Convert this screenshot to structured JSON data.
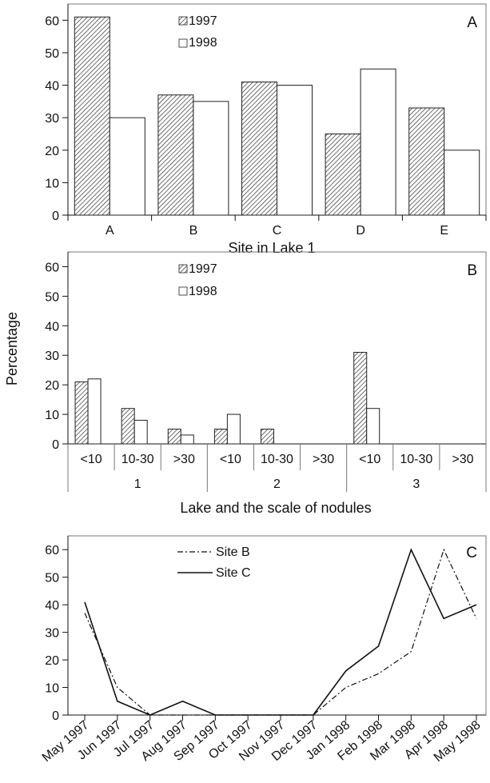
{
  "chart_data": [
    {
      "type": "bar",
      "panel_label": "A",
      "xlabel": "Site in Lake 1",
      "ylabel": "",
      "categories": [
        "A",
        "B",
        "C",
        "D",
        "E"
      ],
      "ylim": [
        0,
        65
      ],
      "yticks": [
        0,
        10,
        20,
        30,
        40,
        50,
        60
      ],
      "legend": "top-center",
      "series": [
        {
          "name": "1997",
          "values": [
            61,
            37,
            41,
            25,
            33
          ],
          "pattern": "hatched"
        },
        {
          "name": "1998",
          "values": [
            30,
            35,
            40,
            45,
            20
          ],
          "pattern": "open"
        }
      ]
    },
    {
      "type": "bar",
      "panel_label": "B",
      "xlabel": "Lake and the scale of nodules",
      "ylabel": "Percentage",
      "groups": [
        "1",
        "2",
        "3"
      ],
      "categories": [
        "<10",
        "10-30",
        ">30",
        "<10",
        "10-30",
        ">30",
        "<10",
        "10-30",
        ">30"
      ],
      "ylim": [
        0,
        65
      ],
      "yticks": [
        0,
        10,
        20,
        30,
        40,
        50,
        60
      ],
      "legend": "top-center",
      "series": [
        {
          "name": "1997",
          "values": [
            21,
            12,
            5,
            5,
            5,
            0,
            31,
            0,
            0
          ],
          "pattern": "hatched"
        },
        {
          "name": "1998",
          "values": [
            22,
            8,
            3,
            10,
            0,
            0,
            12,
            0,
            0
          ],
          "pattern": "open"
        }
      ]
    },
    {
      "type": "line",
      "panel_label": "C",
      "xlabel": "",
      "ylabel": "",
      "x": [
        "May 1997",
        "Jun 1997",
        "Jul 1997",
        "Aug 1997",
        "Sep 1997",
        "Oct 1997",
        "Nov 1997",
        "Dec 1997",
        "Jan 1998",
        "Feb 1998",
        "Mar 1998",
        "Apr 1998",
        "May 1998"
      ],
      "ylim": [
        0,
        65
      ],
      "yticks": [
        0,
        10,
        20,
        30,
        40,
        50,
        60
      ],
      "legend": "top-left",
      "series": [
        {
          "name": "Site B",
          "values": [
            37,
            10,
            0,
            0,
            0,
            0,
            0,
            0,
            10,
            15,
            23,
            60,
            35
          ],
          "style": "dash-dot"
        },
        {
          "name": "Site C",
          "values": [
            41,
            5,
            0,
            5,
            0,
            0,
            0,
            0,
            16,
            25,
            60,
            35,
            40
          ],
          "style": "solid"
        }
      ]
    }
  ]
}
